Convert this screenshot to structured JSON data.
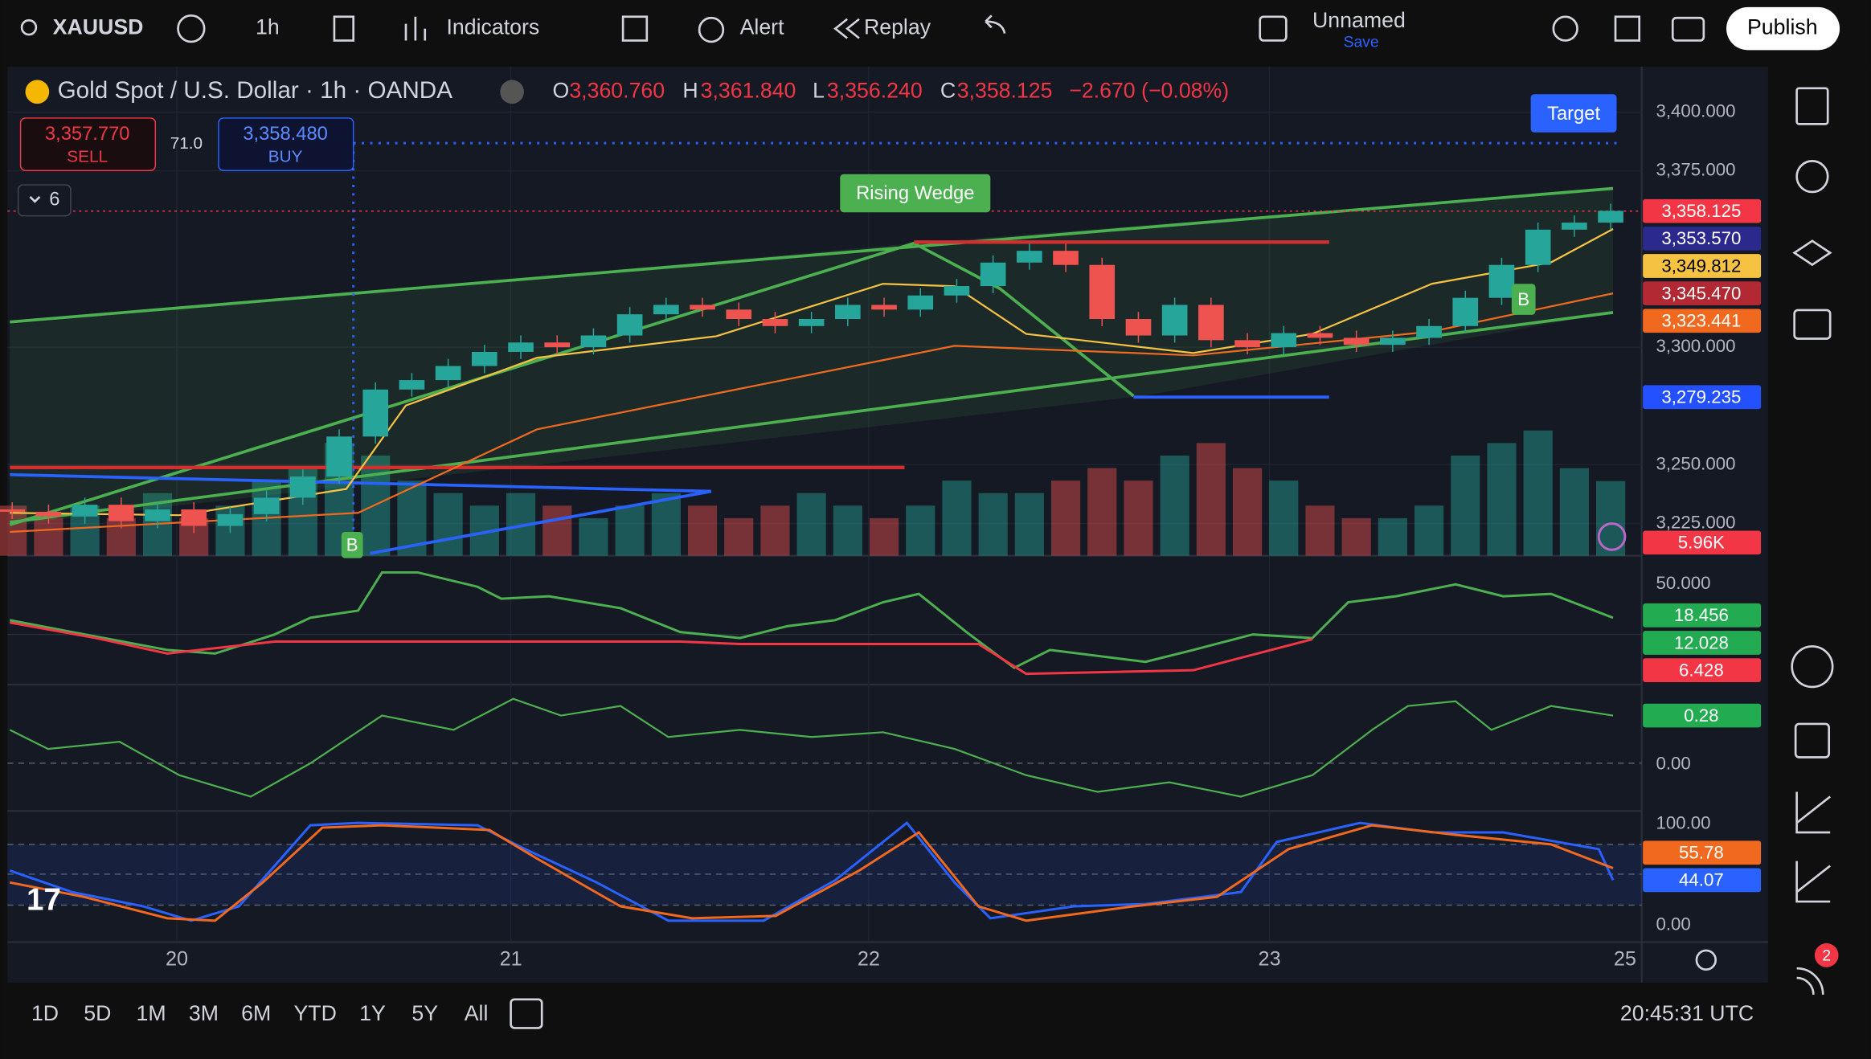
{
  "toolbar": {
    "symbol": "XAUUSD",
    "interval": "1h",
    "indicators": "Indicators",
    "alert": "Alert",
    "replay": "Replay",
    "layout_name": "Unnamed",
    "save": "Save",
    "publish": "Publish"
  },
  "legend": {
    "title": "Gold Spot / U.S. Dollar · 1h · OANDA",
    "o_label": "O",
    "open": "3,360.760",
    "h_label": "H",
    "high": "3,361.840",
    "l_label": "L",
    "low": "3,356.240",
    "c_label": "C",
    "close": "3,358.125",
    "change": "−2.670 (−0.08%)",
    "indicator_count": "6"
  },
  "trade": {
    "sell_price": "3,357.770",
    "sell": "SELL",
    "spread": "71.0",
    "buy_price": "3,358.480",
    "buy": "BUY"
  },
  "annotations": {
    "pattern": "Rising Wedge",
    "target": "Target",
    "signal_1": "B",
    "signal_2": "B"
  },
  "price_axis": {
    "ticks": [
      {
        "value": 3400,
        "label": "3,400.000"
      },
      {
        "value": 3375,
        "label": "3,375.000"
      },
      {
        "value": 3300,
        "label": "3,300.000"
      },
      {
        "value": 3250,
        "label": "3,250.000"
      },
      {
        "value": 3225,
        "label": "3,225.000"
      }
    ],
    "labels": [
      {
        "text": "3,358.125",
        "color": "#f23645"
      },
      {
        "text": "3,353.570",
        "color": "#2b2a8c"
      },
      {
        "text": "3,349.812",
        "color": "#f5c242"
      },
      {
        "text": "3,345.470",
        "color": "#b22833"
      },
      {
        "text": "3,323.441",
        "color": "#f0691e"
      },
      {
        "text": "3,279.235",
        "color": "#2451ff"
      },
      {
        "text": "5.96K",
        "color": "#f23645"
      }
    ]
  },
  "candles": {
    "closes": [
      3230,
      3228,
      3233,
      3226,
      3231,
      3224,
      3229,
      3236,
      3245,
      3262,
      3282,
      3286,
      3292,
      3298,
      3302,
      3300,
      3305,
      3314,
      3318,
      3316,
      3312,
      3309,
      3312,
      3318,
      3316,
      3322,
      3326,
      3336,
      3341,
      3335,
      3312,
      3305,
      3318,
      3303,
      3300,
      3306,
      3304,
      3301,
      3304,
      3309,
      3321,
      3335,
      3350,
      3353,
      3358
    ],
    "volumes": [
      4,
      3,
      4,
      3,
      5,
      3,
      4,
      6,
      7,
      9,
      8,
      6,
      5,
      4,
      5,
      4,
      3,
      4,
      5,
      4,
      3,
      4,
      5,
      4,
      3,
      4,
      6,
      5,
      5,
      6,
      7,
      6,
      8,
      9,
      7,
      6,
      4,
      3,
      3,
      4,
      8,
      9,
      10,
      7,
      5.96
    ]
  },
  "macd": {
    "tick": "50.000",
    "labels": [
      {
        "text": "18.456",
        "color": "#22ab50"
      },
      {
        "text": "12.028",
        "color": "#22ab50"
      },
      {
        "text": "6.428",
        "color": "#f23645"
      }
    ]
  },
  "oscillator": {
    "label": "0.28",
    "zero": "0.00"
  },
  "stochastic": {
    "top": "100.00",
    "k": "55.78",
    "d": "44.07",
    "bottom": "0.00"
  },
  "time_axis": [
    "20",
    "21",
    "22",
    "23",
    "25"
  ],
  "ranges": [
    "1D",
    "5D",
    "1M",
    "3M",
    "6M",
    "YTD",
    "1Y",
    "5Y",
    "All"
  ],
  "clock": "20:45:31 UTC",
  "notifications": "2"
}
